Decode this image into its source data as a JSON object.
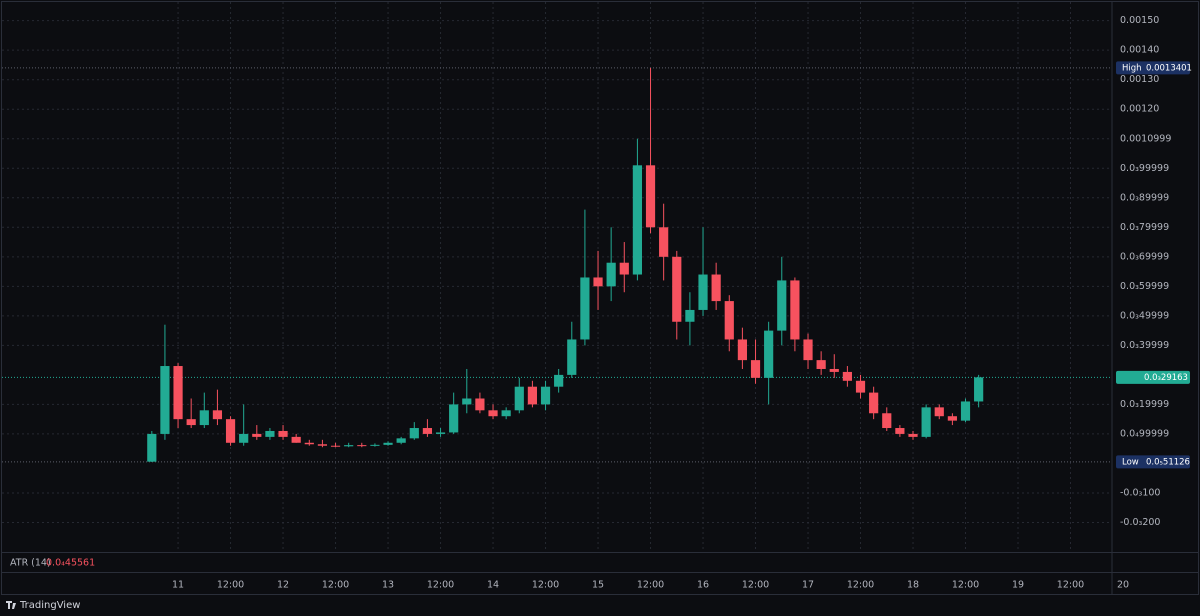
{
  "chart_data": {
    "type": "candlestick",
    "x": [
      -6,
      -3,
      0,
      3,
      6,
      9,
      12,
      15,
      18,
      21,
      24,
      27,
      30,
      33,
      36,
      39,
      42,
      45,
      48,
      51,
      54,
      57,
      60,
      63,
      66,
      69,
      72,
      75,
      78,
      81,
      84,
      87,
      90,
      93,
      96,
      99,
      102,
      105,
      108,
      111,
      114,
      117,
      120,
      123,
      126,
      129,
      132,
      135,
      138,
      141,
      144,
      147,
      150,
      153,
      156,
      159,
      162,
      165,
      168,
      171,
      174,
      177,
      180,
      183
    ],
    "open": [
      6e-06,
      0.0001,
      0.00033,
      0.00015,
      0.00013,
      0.00018,
      0.00015,
      7e-05,
      0.0001,
      9e-05,
      0.00011,
      9e-05,
      7e-05,
      6.5e-05,
      6e-05,
      5.8e-05,
      6.2e-05,
      6e-05,
      6.3e-05,
      7e-05,
      8.5e-05,
      0.00012,
      0.0001,
      0.000105,
      0.0002,
      0.00022,
      0.00018,
      0.00016,
      0.00018,
      0.00026,
      0.0002,
      0.00026,
      0.0003,
      0.00042,
      0.00063,
      0.0006,
      0.00068,
      0.00064,
      0.00101,
      0.0008,
      0.0007,
      0.00048,
      0.00052,
      0.00064,
      0.00055,
      0.00042,
      0.00035,
      0.00029,
      0.00045,
      0.00062,
      0.00042,
      0.00035,
      0.00032,
      0.00031,
      0.00028,
      0.00024,
      0.00017,
      0.00012,
      0.0001,
      9e-05,
      0.00019,
      0.00016,
      0.000145,
      0.00021
    ],
    "high": [
      0.00011,
      0.00047,
      0.00034,
      0.00022,
      0.00024,
      0.00025,
      0.00016,
      0.0002,
      0.00013,
      0.00012,
      0.00013,
      0.0001,
      8e-05,
      8e-05,
      7e-05,
      7e-05,
      7e-05,
      6.8e-05,
      7.5e-05,
      9e-05,
      0.00014,
      0.00015,
      0.00012,
      0.00024,
      0.00032,
      0.00024,
      0.0002,
      0.00019,
      0.00029,
      0.00028,
      0.00028,
      0.00032,
      0.00048,
      0.00086,
      0.00072,
      0.0008,
      0.00075,
      0.0011,
      0.0013401,
      0.00088,
      0.00072,
      0.00058,
      0.0008,
      0.00068,
      0.00057,
      0.00046,
      0.00042,
      0.00048,
      0.0007,
      0.00063,
      0.00044,
      0.00038,
      0.00037,
      0.00033,
      0.0003,
      0.00026,
      0.00019,
      0.00013,
      0.00011,
      0.0002,
      0.0002,
      0.00017,
      0.00022,
      0.0003
    ],
    "low": [
      5.1126e-06,
      8e-05,
      0.00012,
      0.00012,
      0.00012,
      0.00013,
      6e-05,
      6e-05,
      8e-05,
      8e-05,
      8e-05,
      7e-05,
      6e-05,
      5.5e-05,
      5.5e-05,
      5.5e-05,
      5.5e-05,
      5.7e-05,
      6e-05,
      6.5e-05,
      8e-05,
      9e-05,
      9e-05,
      0.0001,
      0.00017,
      0.00017,
      0.00015,
      0.00015,
      0.00017,
      0.00019,
      0.00018,
      0.00024,
      0.00029,
      0.0004,
      0.00052,
      0.00055,
      0.00058,
      0.00062,
      0.00078,
      0.00062,
      0.00042,
      0.0004,
      0.0005,
      0.00052,
      0.00038,
      0.00032,
      0.00027,
      0.0002,
      0.0004,
      0.00038,
      0.00032,
      0.0003,
      0.00029,
      0.00026,
      0.00022,
      0.00015,
      0.00011,
      9e-05,
      8e-05,
      8.5e-05,
      0.00015,
      0.00013,
      0.00014,
      0.00019
    ],
    "close": [
      0.0001,
      0.00033,
      0.00015,
      0.00013,
      0.00018,
      0.00015,
      7e-05,
      0.0001,
      9e-05,
      0.00011,
      9e-05,
      7e-05,
      6.5e-05,
      6e-05,
      5.8e-05,
      6.2e-05,
      6e-05,
      6.3e-05,
      7e-05,
      8.5e-05,
      0.00012,
      0.0001,
      0.000105,
      0.0002,
      0.00022,
      0.00018,
      0.00016,
      0.00018,
      0.00026,
      0.0002,
      0.00026,
      0.0003,
      0.00042,
      0.00063,
      0.0006,
      0.00068,
      0.00064,
      0.00101,
      0.0008,
      0.0007,
      0.00048,
      0.00052,
      0.00064,
      0.00055,
      0.00042,
      0.00035,
      0.00029,
      0.00045,
      0.00062,
      0.00042,
      0.00035,
      0.00032,
      0.00031,
      0.00028,
      0.00024,
      0.00017,
      0.00012,
      0.0001,
      9e-05,
      0.00019,
      0.00016,
      0.000145,
      0.00021,
      0.00029163
    ],
    "up_color": "#22ab94",
    "down_color": "#f7525f",
    "xlim": [
      -40.7,
      233.6
    ],
    "xticks": [
      {
        "value": 0,
        "label": "11"
      },
      {
        "value": 12,
        "label": "12:00"
      },
      {
        "value": 24,
        "label": "12"
      },
      {
        "value": 36,
        "label": "12:00"
      },
      {
        "value": 48,
        "label": "13"
      },
      {
        "value": 60,
        "label": "12:00"
      },
      {
        "value": 72,
        "label": "14"
      },
      {
        "value": 84,
        "label": "12:00"
      },
      {
        "value": 96,
        "label": "15"
      },
      {
        "value": 108,
        "label": "12:00"
      },
      {
        "value": 120,
        "label": "16"
      },
      {
        "value": 132,
        "label": "12:00"
      },
      {
        "value": 144,
        "label": "17"
      },
      {
        "value": 156,
        "label": "12:00"
      },
      {
        "value": 168,
        "label": "18"
      },
      {
        "value": 180,
        "label": "12:00"
      },
      {
        "value": 192,
        "label": "19"
      },
      {
        "value": 204,
        "label": "12:00"
      },
      {
        "value": 216,
        "label": "20"
      }
    ],
    "ylim": [
      -0.0003,
      0.00157
    ],
    "yticks": [
      {
        "value": 0.0015,
        "label": "0.00150"
      },
      {
        "value": 0.0014,
        "label": "0.00140"
      },
      {
        "value": 0.0013,
        "label": "0.00130"
      },
      {
        "value": 0.0012,
        "label": "0.00120"
      },
      {
        "value": 0.0010999,
        "label": "0.0010999"
      },
      {
        "value": 0.00099999,
        "label": "0.0₃99999"
      },
      {
        "value": 0.00089999,
        "label": "0.0₃89999"
      },
      {
        "value": 0.00079999,
        "label": "0.0₃79999"
      },
      {
        "value": 0.00069999,
        "label": "0.0₃69999"
      },
      {
        "value": 0.00059999,
        "label": "0.0₃59999"
      },
      {
        "value": 0.00049999,
        "label": "0.0₃49999"
      },
      {
        "value": 0.00039999,
        "label": "0.0₃39999"
      },
      {
        "value": 0.00019999,
        "label": "0.0₃19999"
      },
      {
        "value": 9.9999e-05,
        "label": "0.0₄99999"
      },
      {
        "value": -0.0001,
        "label": "-0.0₃100"
      },
      {
        "value": -0.0002,
        "label": "-0.0₃200"
      }
    ],
    "grid": true,
    "high_marker": {
      "label": "High",
      "value": 0.0013401,
      "value_label": "0.0013401"
    },
    "low_marker": {
      "label": "Low",
      "value": 5.1126e-06,
      "value_label": "0.0₅51126"
    },
    "last_price": {
      "value": 0.00029163,
      "value_label": "0.0₃29163"
    },
    "indicator": {
      "label": "ATR (14)",
      "value_label": "0.0₄45561"
    },
    "footer": "TradingView"
  }
}
